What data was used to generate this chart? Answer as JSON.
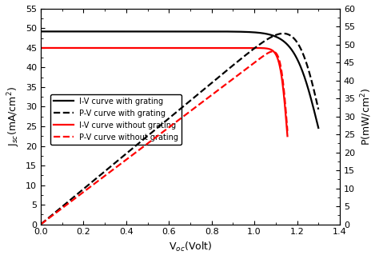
{
  "xlabel": "V$_{oc}$(Volt)",
  "ylabel_left": "J$_{sc}$(mA/cm$^2$)",
  "ylabel_right": "P(mW/cm$^2$)",
  "xlim": [
    0,
    1.4
  ],
  "ylim_left": [
    0,
    55
  ],
  "ylim_right": [
    0,
    60
  ],
  "xticks": [
    0.0,
    0.2,
    0.4,
    0.6,
    0.8,
    1.0,
    1.2,
    1.4
  ],
  "yticks_left": [
    0,
    5,
    10,
    15,
    20,
    25,
    30,
    35,
    40,
    45,
    50,
    55
  ],
  "yticks_right": [
    0,
    5,
    10,
    15,
    20,
    25,
    30,
    35,
    40,
    45,
    50,
    55,
    60
  ],
  "legend": [
    {
      "label": "I-V curve with grating",
      "color": "black",
      "ls": "solid"
    },
    {
      "label": "P-V curve with grating",
      "color": "black",
      "ls": "dashed"
    },
    {
      "label": "I-V curve without grating",
      "color": "red",
      "ls": "solid"
    },
    {
      "label": "P-V curve without grating",
      "color": "red",
      "ls": "dashed"
    }
  ],
  "iv_with_grating": {
    "jsc": 49.2,
    "voc": 1.3,
    "k": 18,
    "color": "black",
    "lw": 1.6
  },
  "iv_without_grating": {
    "jsc": 45.0,
    "voc": 1.155,
    "k": 60,
    "color": "red",
    "lw": 1.6
  },
  "background": "#ffffff"
}
